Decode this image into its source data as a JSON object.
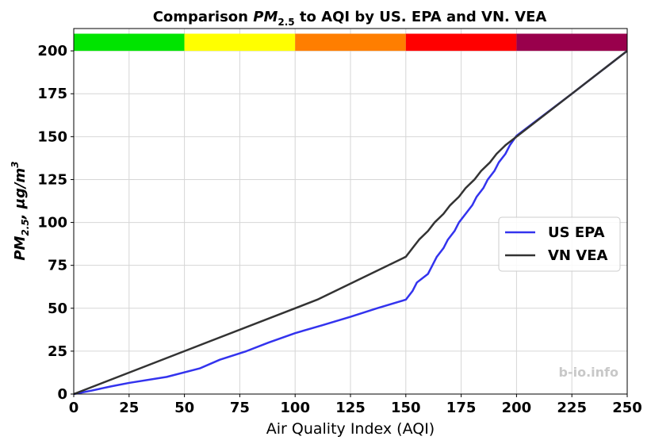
{
  "chart_data": {
    "type": "line",
    "title": "Comparison PM2.5 to AQI by US. EPA and VN. VEA",
    "xlabel": "Air Quality Index (AQI)",
    "ylabel": "PM2.5, μg/m3",
    "xlim": [
      0,
      250
    ],
    "ylim": [
      0,
      213
    ],
    "xticks": [
      0,
      25,
      50,
      75,
      100,
      125,
      150,
      175,
      200,
      225,
      250
    ],
    "yticks": [
      0,
      25,
      50,
      75,
      100,
      125,
      150,
      175,
      200
    ],
    "grid": true,
    "legend_position": "right",
    "color_bands": [
      {
        "x0": 0,
        "x1": 50,
        "color": "#00e400"
      },
      {
        "x0": 50,
        "x1": 100,
        "color": "#ffff00"
      },
      {
        "x0": 100,
        "x1": 150,
        "color": "#ff7e00"
      },
      {
        "x0": 150,
        "x1": 200,
        "color": "#ff0000"
      },
      {
        "x0": 200,
        "x1": 250,
        "color": "#99004c"
      }
    ],
    "band_y_range": [
      200,
      210
    ],
    "series": [
      {
        "name": "US EPA",
        "color": "#3333ee",
        "points": [
          [
            0,
            0
          ],
          [
            8,
            2
          ],
          [
            17,
            4.5
          ],
          [
            25,
            6.5
          ],
          [
            42,
            10
          ],
          [
            57,
            15
          ],
          [
            66,
            20
          ],
          [
            78,
            25
          ],
          [
            88,
            30
          ],
          [
            100,
            35.5
          ],
          [
            112,
            40
          ],
          [
            125,
            45
          ],
          [
            137,
            50
          ],
          [
            150,
            55
          ],
          [
            153,
            60
          ],
          [
            155,
            65
          ],
          [
            160,
            70
          ],
          [
            162,
            75
          ],
          [
            164,
            80
          ],
          [
            167,
            85
          ],
          [
            169,
            90
          ],
          [
            172,
            95
          ],
          [
            174,
            100
          ],
          [
            177,
            105
          ],
          [
            180,
            110
          ],
          [
            182,
            115
          ],
          [
            185,
            120
          ],
          [
            187,
            125
          ],
          [
            190,
            130
          ],
          [
            192,
            135
          ],
          [
            195,
            140
          ],
          [
            197,
            145
          ],
          [
            200,
            150.5
          ],
          [
            225,
            175
          ],
          [
            250,
            200
          ]
        ]
      },
      {
        "name": "VN VEA",
        "color": "#333333",
        "points": [
          [
            0,
            0
          ],
          [
            50,
            25
          ],
          [
            100,
            50
          ],
          [
            110,
            55
          ],
          [
            150,
            80
          ],
          [
            153,
            85
          ],
          [
            156,
            90
          ],
          [
            160,
            95
          ],
          [
            163,
            100
          ],
          [
            167,
            105
          ],
          [
            170,
            110
          ],
          [
            174,
            115
          ],
          [
            177,
            120
          ],
          [
            181,
            125
          ],
          [
            184,
            130
          ],
          [
            188,
            135
          ],
          [
            191,
            140
          ],
          [
            195,
            145
          ],
          [
            200,
            150
          ],
          [
            250,
            200
          ]
        ]
      }
    ]
  },
  "watermark": "b-io.info"
}
